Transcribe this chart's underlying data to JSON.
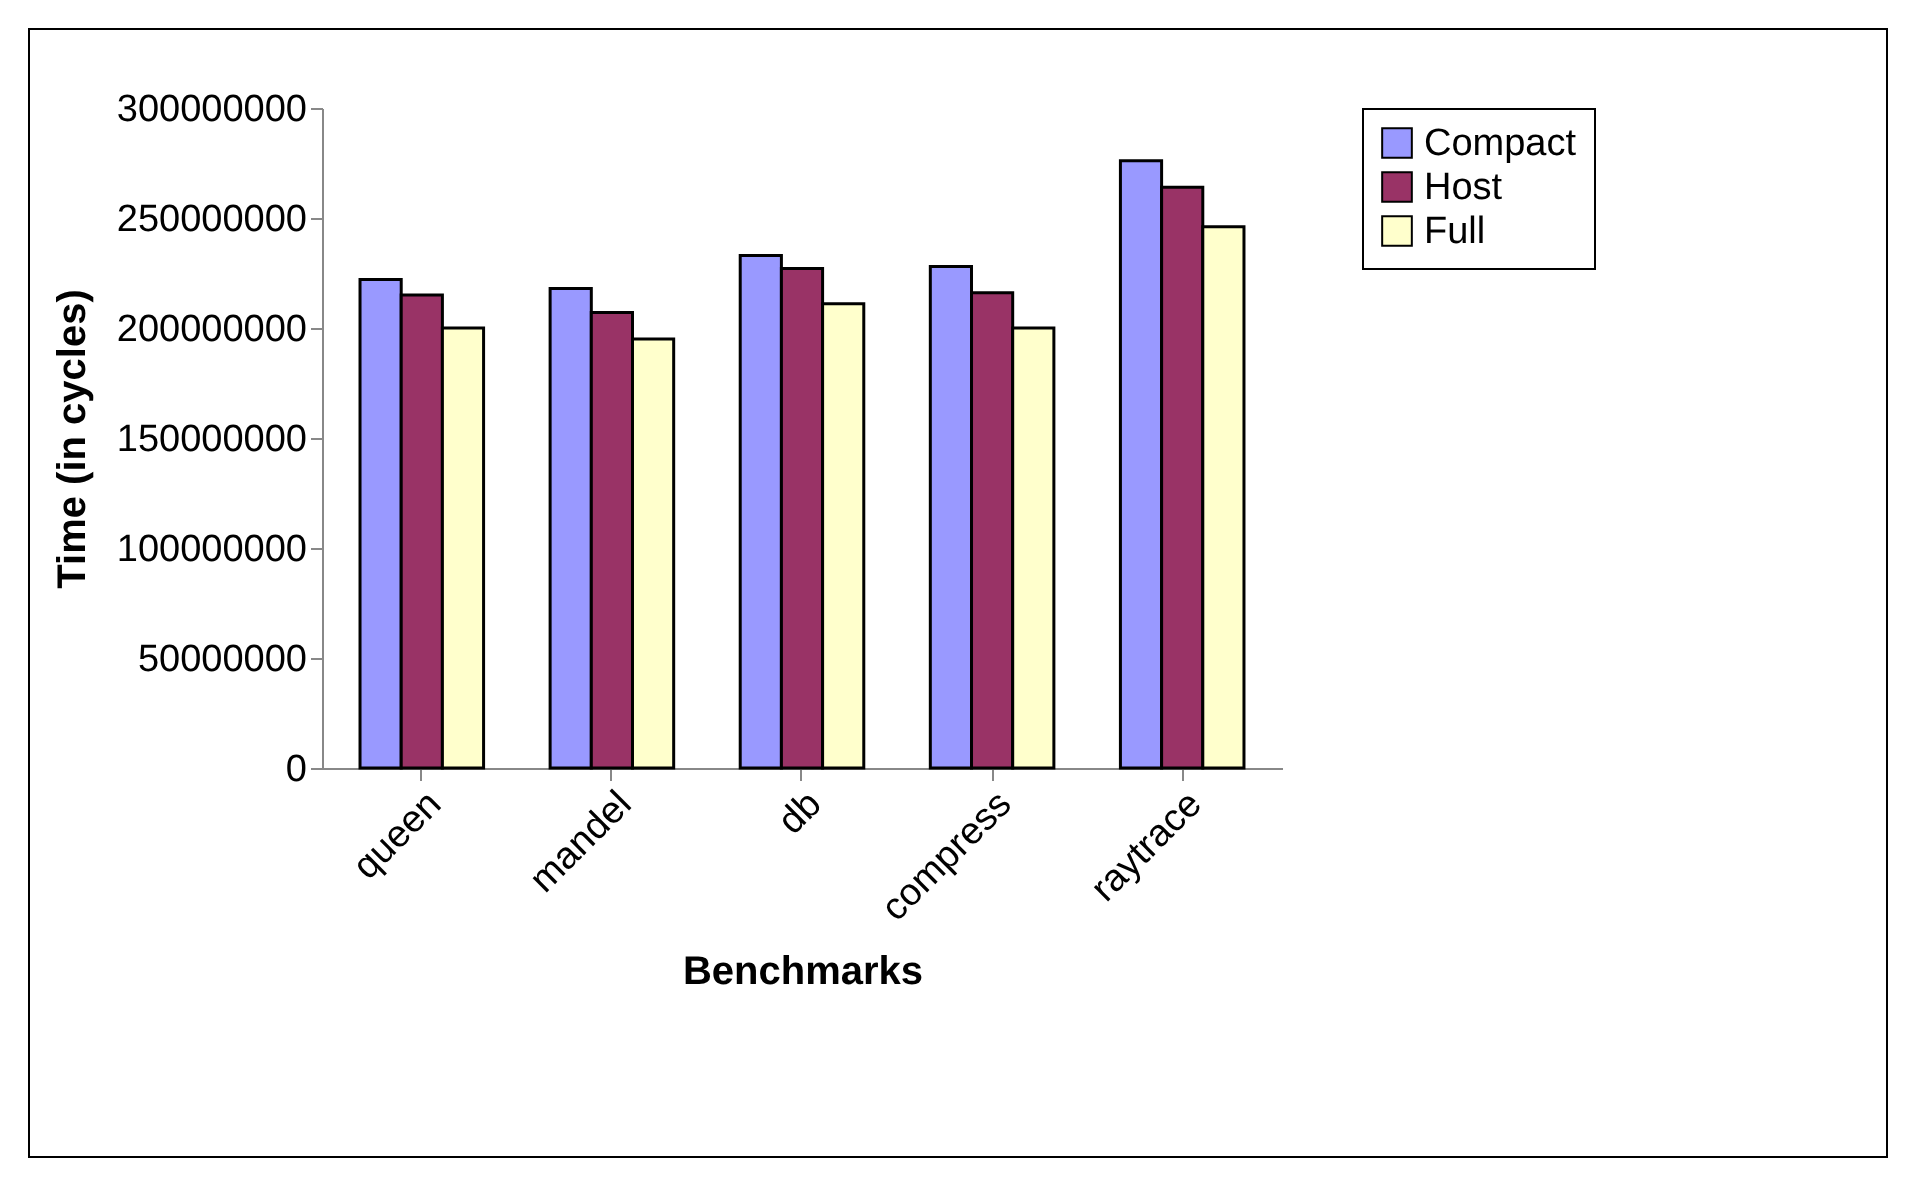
{
  "chart_data": {
    "type": "bar",
    "xlabel": "Benchmarks",
    "ylabel": "Time (in cycles)",
    "categories": [
      "queen",
      "mandel",
      "db",
      "compress",
      "raytrace"
    ],
    "series": [
      {
        "name": "Compact",
        "color": "#9999ff",
        "values": [
          222000000,
          218000000,
          233000000,
          228000000,
          276000000
        ]
      },
      {
        "name": "Host",
        "color": "#993366",
        "values": [
          215000000,
          207000000,
          227000000,
          216000000,
          264000000
        ]
      },
      {
        "name": "Full",
        "color": "#ffffcc",
        "values": [
          200000000,
          195000000,
          211000000,
          200000000,
          246000000
        ]
      }
    ],
    "ylim": [
      0,
      300000000
    ],
    "yticks": [
      0,
      50000000,
      100000000,
      150000000,
      200000000,
      250000000,
      300000000
    ],
    "grid": false,
    "legend": "right"
  }
}
